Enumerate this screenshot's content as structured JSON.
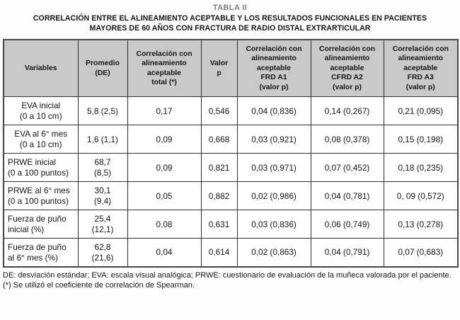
{
  "page": {
    "table_label": "TABLA II",
    "heading": "CORRELACIÓN ENTRE EL ALINEAMIENTO ACEPTABLE Y LOS RESULTADOS FUNCIONALES EN PACIENTES\nMAYORES DE 60 AÑOS CON FRACTURA DE RADIO DISTAL EXTRARTICULAR"
  },
  "table": {
    "headers": [
      "Variables",
      "Promedio\n(DE)",
      "Correlación con\nalineamiento\naceptable\ntotal (*)",
      "Valor\np",
      "Correlación con\nalineamiento\naceptable\nFRD A1\n(valor p)",
      "Correlación con\nalineamiento\naceptable\nCFRD A2\n(valor p)",
      "Correlación con\nalineamiento\naceptable\nFRD A3\n(valor p)"
    ],
    "rows": [
      [
        "EVA inicial\n(0 a 10 cm)",
        "5,8 (2,5)",
        "0,17",
        "0,546",
        "0,04 (0,836)",
        "0,14 (0,267)",
        "0,21 (0,095)"
      ],
      [
        "EVA al 6° mes\n(0 a 10 cm)",
        "1,6 (1,1)",
        "0,09",
        "0,668",
        "0,03 (0,921)",
        "0,08 (0,378)",
        "0,15 (0,198)"
      ],
      [
        "PRWE inicial\n(0 a 100 puntos)",
        "68,7\n(8,5)",
        "0,09",
        "0,821",
        "0,03 (0,971)",
        "0,07 (0,452)",
        "0,18 (0,235)"
      ],
      [
        "PRWE al 6° mes\n(0 a 100 puntos)",
        "30,1\n(9,4)",
        "0,05",
        "0,882",
        "0,02 (0,986)",
        "0,04 (0,781)",
        "0, 09 (0,572)"
      ],
      [
        "Fuerza de puño\ninicial (%)",
        "25,4\n(12,1)",
        "0,08",
        "0,631",
        "0,03 (0,836)",
        "0,06 (0,749)",
        "0,13 (0,278)"
      ],
      [
        "Fuerza de puño\nal 6° mes (%)",
        "62,8\n(21,6)",
        "0,04",
        "0,614",
        "0,02 (0,863)",
        "0,04 (0,791)",
        "0,07 (0,683)"
      ]
    ]
  },
  "footnotes": {
    "abbreviations": "DE: desviación estándar; EVA: escala visual analógica; PRWE: cuestionario de evaluación de la muñeca valorada por el paciente.",
    "method": "(*) Se utilizó el coeficiente de correlación de Spearman."
  },
  "colors": {
    "header_bg": "#c9c9c9",
    "border": "#303030",
    "outer_border": "#474747",
    "label_gray": "#7d7d7d",
    "text": "#161616"
  }
}
